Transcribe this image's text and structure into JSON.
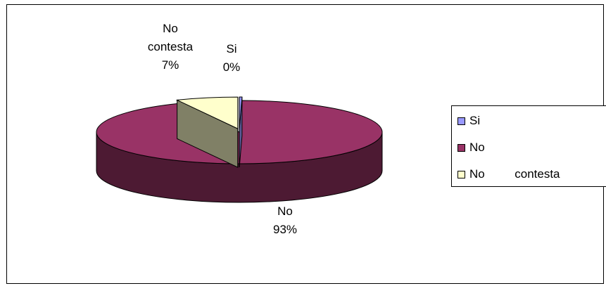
{
  "chart_data": {
    "type": "pie",
    "title": "",
    "slices": [
      {
        "name": "Si",
        "label_line1": "Si",
        "label_line2": "",
        "percent_label": "0%",
        "value": 0.3,
        "color": "#9999FF",
        "side_color": "#5c5c99"
      },
      {
        "name": "No",
        "label_line1": "No",
        "label_line2": "",
        "percent_label": "93%",
        "value": 93,
        "color": "#993366",
        "side_color": "#4d1a33"
      },
      {
        "name": "No contesta",
        "label_line1": "No",
        "label_line2": "contesta",
        "percent_label": "7%",
        "value": 7,
        "color": "#FFFFCC",
        "side_color": "#808066"
      }
    ],
    "legend": {
      "placement": "right",
      "entries": [
        {
          "text": "Si",
          "color": "#9999FF"
        },
        {
          "text": "No",
          "color": "#993366"
        },
        {
          "text": "No         contesta",
          "color": "#FFFFCC"
        }
      ]
    }
  }
}
